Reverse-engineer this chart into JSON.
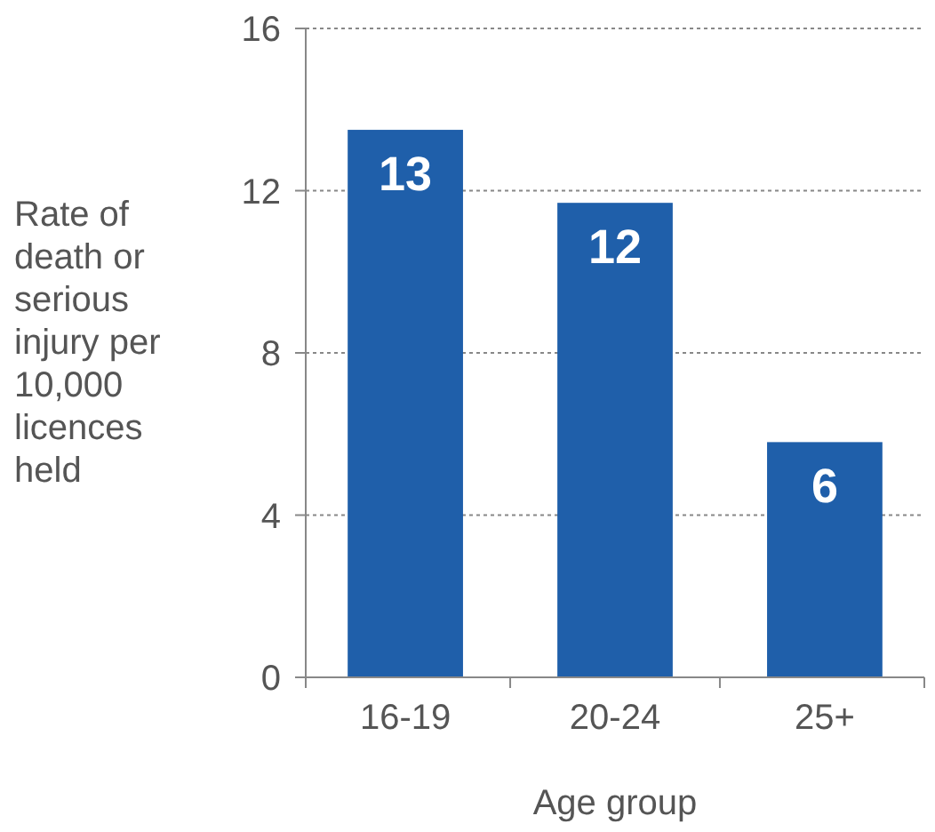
{
  "chart_data": {
    "type": "bar",
    "xlabel": "Age group",
    "ylabel": "Rate of death or serious injury per 10,000 licences held",
    "categories": [
      "16-19",
      "20-24",
      "25+"
    ],
    "values": [
      13.5,
      11.7,
      5.8
    ],
    "value_labels": [
      "13",
      "12",
      "6"
    ],
    "color": "#1f5faa",
    "ylim": [
      0,
      16
    ],
    "yticks": [
      0,
      4,
      8,
      12,
      16
    ],
    "grid": "y"
  }
}
